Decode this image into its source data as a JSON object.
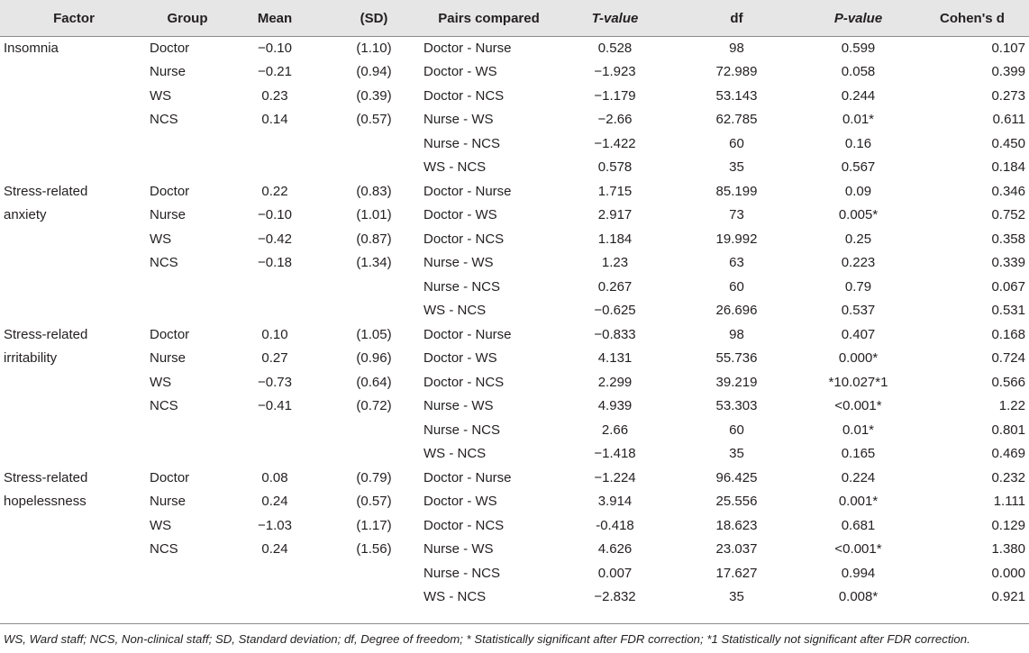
{
  "table": {
    "headers": {
      "factor": "Factor",
      "group": "Group",
      "mean": "Mean",
      "sd": "(SD)",
      "pairs": "Pairs compared",
      "t_value": "T-value",
      "df": "df",
      "p_value": "P-value",
      "cohens_d": "Cohen's d"
    },
    "blocks": [
      {
        "factor_lines": [
          "Insomnia",
          ""
        ],
        "groups": [
          {
            "group": "Doctor",
            "mean": "−0.10",
            "sd": "(1.10)"
          },
          {
            "group": "Nurse",
            "mean": "−0.21",
            "sd": "(0.94)"
          },
          {
            "group": "WS",
            "mean": "0.23",
            "sd": "(0.39)"
          },
          {
            "group": "NCS",
            "mean": "0.14",
            "sd": "(0.57)"
          }
        ],
        "pairs": [
          {
            "pair": "Doctor - Nurse",
            "t": "0.528",
            "df": "98",
            "p": "0.599",
            "d": "0.107"
          },
          {
            "pair": "Doctor - WS",
            "t": "−1.923",
            "df": "72.989",
            "p": "0.058",
            "d": "0.399"
          },
          {
            "pair": "Doctor - NCS",
            "t": "−1.179",
            "df": "53.143",
            "p": "0.244",
            "d": "0.273"
          },
          {
            "pair": "Nurse - WS",
            "t": "−2.66",
            "df": "62.785",
            "p": "0.01*",
            "d": "0.611"
          },
          {
            "pair": "Nurse - NCS",
            "t": "−1.422",
            "df": "60",
            "p": "0.16",
            "d": "0.450"
          },
          {
            "pair": "WS - NCS",
            "t": "0.578",
            "df": "35",
            "p": "0.567",
            "d": "0.184"
          }
        ]
      },
      {
        "factor_lines": [
          "Stress-related",
          "anxiety"
        ],
        "groups": [
          {
            "group": "Doctor",
            "mean": "0.22",
            "sd": "(0.83)"
          },
          {
            "group": "Nurse",
            "mean": "−0.10",
            "sd": "(1.01)"
          },
          {
            "group": "WS",
            "mean": "−0.42",
            "sd": "(0.87)"
          },
          {
            "group": "NCS",
            "mean": "−0.18",
            "sd": "(1.34)"
          }
        ],
        "pairs": [
          {
            "pair": "Doctor - Nurse",
            "t": "1.715",
            "df": "85.199",
            "p": "0.09",
            "d": "0.346"
          },
          {
            "pair": "Doctor - WS",
            "t": "2.917",
            "df": "73",
            "p": "0.005*",
            "d": "0.752"
          },
          {
            "pair": "Doctor - NCS",
            "t": "1.184",
            "df": "19.992",
            "p": "0.25",
            "d": "0.358"
          },
          {
            "pair": "Nurse - WS",
            "t": "1.23",
            "df": "63",
            "p": "0.223",
            "d": "0.339"
          },
          {
            "pair": "Nurse - NCS",
            "t": "0.267",
            "df": "60",
            "p": "0.79",
            "d": "0.067"
          },
          {
            "pair": "WS - NCS",
            "t": "−0.625",
            "df": "26.696",
            "p": "0.537",
            "d": "0.531"
          }
        ]
      },
      {
        "factor_lines": [
          "Stress-related",
          "irritability"
        ],
        "groups": [
          {
            "group": "Doctor",
            "mean": "0.10",
            "sd": "(1.05)"
          },
          {
            "group": "Nurse",
            "mean": "0.27",
            "sd": "(0.96)"
          },
          {
            "group": "WS",
            "mean": "−0.73",
            "sd": "(0.64)"
          },
          {
            "group": "NCS",
            "mean": "−0.41",
            "sd": "(0.72)"
          }
        ],
        "pairs": [
          {
            "pair": "Doctor - Nurse",
            "t": "−0.833",
            "df": "98",
            "p": "0.407",
            "d": "0.168"
          },
          {
            "pair": "Doctor - WS",
            "t": "4.131",
            "df": "55.736",
            "p": "0.000*",
            "d": "0.724"
          },
          {
            "pair": "Doctor - NCS",
            "t": "2.299",
            "df": "39.219",
            "p": "*10.027*1",
            "d": "0.566"
          },
          {
            "pair": "Nurse - WS",
            "t": "4.939",
            "df": "53.303",
            "p": "<0.001*",
            "d": "1.22"
          },
          {
            "pair": "Nurse - NCS",
            "t": "2.66",
            "df": "60",
            "p": "0.01*",
            "d": "0.801"
          },
          {
            "pair": "WS - NCS",
            "t": "−1.418",
            "df": "35",
            "p": "0.165",
            "d": "0.469"
          }
        ]
      },
      {
        "factor_lines": [
          "Stress-related",
          "hopelessness"
        ],
        "groups": [
          {
            "group": "Doctor",
            "mean": "0.08",
            "sd": "(0.79)"
          },
          {
            "group": "Nurse",
            "mean": "0.24",
            "sd": "(0.57)"
          },
          {
            "group": "WS",
            "mean": "−1.03",
            "sd": "(1.17)"
          },
          {
            "group": "NCS",
            "mean": "0.24",
            "sd": "(1.56)"
          }
        ],
        "pairs": [
          {
            "pair": "Doctor - Nurse",
            "t": "−1.224",
            "df": "96.425",
            "p": "0.224",
            "d": "0.232"
          },
          {
            "pair": "Doctor - WS",
            "t": "3.914",
            "df": "25.556",
            "p": "0.001*",
            "d": "1.111"
          },
          {
            "pair": "Doctor - NCS",
            "t": "-0.418",
            "df": "18.623",
            "p": "0.681",
            "d": "0.129"
          },
          {
            "pair": "Nurse - WS",
            "t": "4.626",
            "df": "23.037",
            "p": "<0.001*",
            "d": "1.380"
          },
          {
            "pair": "Nurse - NCS",
            "t": "0.007",
            "df": "17.627",
            "p": "0.994",
            "d": "0.000"
          },
          {
            "pair": "WS - NCS",
            "t": "−2.832",
            "df": "35",
            "p": "0.008*",
            "d": "0.921"
          }
        ]
      }
    ]
  },
  "footnote": "WS, Ward staff; NCS, Non-clinical staff; SD, Standard deviation; df, Degree of freedom; * Statistically significant after FDR correction; *1 Statistically not significant after FDR correction."
}
